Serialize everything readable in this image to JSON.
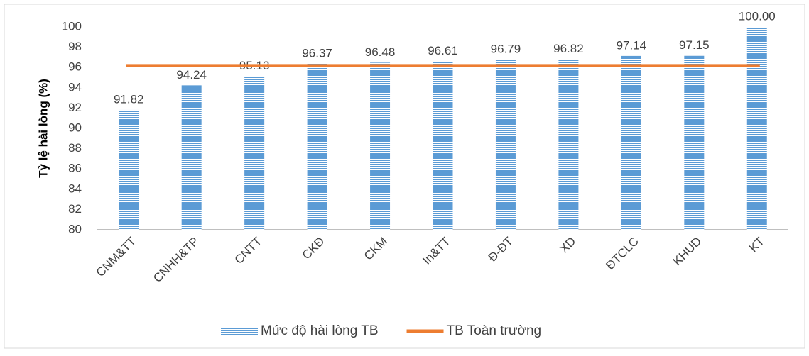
{
  "chart_data": {
    "type": "bar",
    "y_label": "Tỷ lệ hài lòng (%)",
    "categories": [
      "CNM&TT",
      "CNHH&TP",
      "CNTT",
      "CKĐ",
      "CKM",
      "In&TT",
      "Đ-ĐT",
      "XD",
      "ĐTCLC",
      "KHUD",
      "KT"
    ],
    "series": [
      {
        "name": "Mức độ hài lòng TB",
        "type": "bar",
        "color": "#5b9bd5",
        "values": [
          91.82,
          94.24,
          95.13,
          96.37,
          96.48,
          96.61,
          96.79,
          96.82,
          97.14,
          97.15,
          100
        ],
        "value_labels": [
          "91.82",
          "94.24",
          "95.13",
          "96.37",
          "96.48",
          "96.61",
          "96.79",
          "96.82",
          "97.14",
          "97.15",
          "100.00"
        ]
      },
      {
        "name": "TB Toàn trường",
        "type": "line",
        "color": "#ed7d31",
        "values": [
          96.2,
          96.2,
          96.2,
          96.2,
          96.2,
          96.2,
          96.2,
          96.2,
          96.2,
          96.2,
          96.2
        ]
      }
    ],
    "ylim": [
      80,
      100
    ],
    "yticks": [
      80,
      82,
      84,
      86,
      88,
      90,
      92,
      94,
      96,
      98,
      100
    ],
    "grid": false,
    "legend": "bottom"
  }
}
